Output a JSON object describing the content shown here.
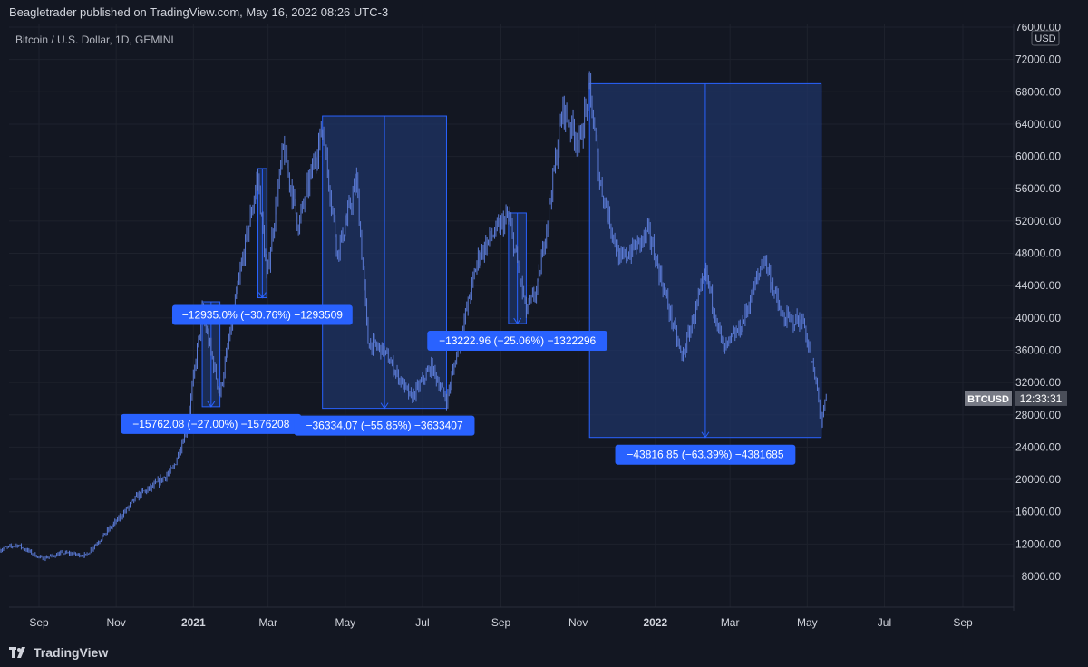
{
  "header": {
    "publish_line": "Beagletrader published on TradingView.com, May 16, 2022 08:26 UTC-3"
  },
  "footer": {
    "brand": "TradingView"
  },
  "colors": {
    "background": "#131722",
    "candle": "#5b7bd6",
    "box_fill": "#1f3466",
    "box_border": "#2962ff",
    "label_bg": "#2962ff",
    "badge_symbol_bg": "#787b86",
    "badge_time_bg": "#4a4e59"
  },
  "chart_data": {
    "type": "candlestick",
    "title": "Bitcoin / U.S. Dollar, 1D, GEMINI",
    "symbol_badge": "BTCUSD",
    "time_badge": "12:33:31",
    "currency": "USD",
    "price_scale_labels": [
      "76000.00",
      "72000.00",
      "68000.00",
      "64000.00",
      "60000.00",
      "56000.00",
      "52000.00",
      "48000.00",
      "44000.00",
      "40000.00",
      "36000.00",
      "32000.00",
      "28000.00",
      "24000.00",
      "20000.00",
      "16000.00",
      "12000.00",
      "8000.00"
    ],
    "ylim": [
      4000,
      76000
    ],
    "x_tick_labels": [
      {
        "label": "Sep",
        "date": "2020-09-01",
        "bold": false
      },
      {
        "label": "Nov",
        "date": "2020-11-01",
        "bold": false
      },
      {
        "label": "2021",
        "date": "2021-01-01",
        "bold": true
      },
      {
        "label": "Mar",
        "date": "2021-03-01",
        "bold": false
      },
      {
        "label": "May",
        "date": "2021-05-01",
        "bold": false
      },
      {
        "label": "Jul",
        "date": "2021-07-01",
        "bold": false
      },
      {
        "label": "Sep",
        "date": "2021-09-01",
        "bold": false
      },
      {
        "label": "Nov",
        "date": "2021-11-01",
        "bold": false
      },
      {
        "label": "2022",
        "date": "2022-01-01",
        "bold": true
      },
      {
        "label": "Mar",
        "date": "2022-03-01",
        "bold": false
      },
      {
        "label": "May",
        "date": "2022-05-01",
        "bold": false
      },
      {
        "label": "Jul",
        "date": "2022-07-01",
        "bold": false
      },
      {
        "label": "Sep",
        "date": "2022-09-01",
        "bold": false
      }
    ],
    "price_path": [
      [
        "2020-08-01",
        11300
      ],
      [
        "2020-08-15",
        11900
      ],
      [
        "2020-09-03",
        10200
      ],
      [
        "2020-09-20",
        10900
      ],
      [
        "2020-10-08",
        10600
      ],
      [
        "2020-10-21",
        12900
      ],
      [
        "2020-11-05",
        15500
      ],
      [
        "2020-11-18",
        18000
      ],
      [
        "2020-12-01",
        19200
      ],
      [
        "2020-12-16",
        21300
      ],
      [
        "2020-12-27",
        26500
      ],
      [
        "2021-01-08",
        40800
      ],
      [
        "2021-01-22",
        30500
      ],
      [
        "2021-02-08",
        46500
      ],
      [
        "2021-02-21",
        57500
      ],
      [
        "2021-02-28",
        45000
      ],
      [
        "2021-03-13",
        61000
      ],
      [
        "2021-03-25",
        51500
      ],
      [
        "2021-04-13",
        63500
      ],
      [
        "2021-04-25",
        48000
      ],
      [
        "2021-05-10",
        57000
      ],
      [
        "2021-05-19",
        37000
      ],
      [
        "2021-05-31",
        36000
      ],
      [
        "2021-06-22",
        30000
      ],
      [
        "2021-07-08",
        34000
      ],
      [
        "2021-07-20",
        29800
      ],
      [
        "2021-08-14",
        47500
      ],
      [
        "2021-08-23",
        49800
      ],
      [
        "2021-09-07",
        52600
      ],
      [
        "2021-09-21",
        40700
      ],
      [
        "2021-09-30",
        43800
      ],
      [
        "2021-10-20",
        66000
      ],
      [
        "2021-11-02",
        61500
      ],
      [
        "2021-11-10",
        68500
      ],
      [
        "2021-11-18",
        57000
      ],
      [
        "2021-12-04",
        47000
      ],
      [
        "2021-12-27",
        50500
      ],
      [
        "2022-01-22",
        35000
      ],
      [
        "2022-02-10",
        45500
      ],
      [
        "2022-02-24",
        36000
      ],
      [
        "2022-03-10",
        39000
      ],
      [
        "2022-03-28",
        47500
      ],
      [
        "2022-04-11",
        40000
      ],
      [
        "2022-04-28",
        39500
      ],
      [
        "2022-05-09",
        31000
      ],
      [
        "2022-05-12",
        27000
      ],
      [
        "2022-05-16",
        30000
      ]
    ],
    "measurements": [
      {
        "label": "−15762.08 (−27.00%) −1576208",
        "from": "2021-01-08",
        "to": "2021-01-22",
        "high": 42000,
        "low": 29000
      },
      {
        "label": "−12935.0% (−30.76%) −1293509",
        "from": "2021-02-21",
        "to": "2021-02-28",
        "high": 58500,
        "low": 42500
      },
      {
        "label": "−36334.07 (−55.85%) −3633407",
        "from": "2021-04-13",
        "to": "2021-07-20",
        "high": 65000,
        "low": 28800
      },
      {
        "label": "−13222.96 (−25.06%) −1322296",
        "from": "2021-09-07",
        "to": "2021-09-21",
        "high": 53000,
        "low": 39300
      },
      {
        "label": "−43816.85 (−63.39%) −4381685",
        "from": "2021-11-10",
        "to": "2022-05-12",
        "high": 69000,
        "low": 25200
      }
    ]
  }
}
